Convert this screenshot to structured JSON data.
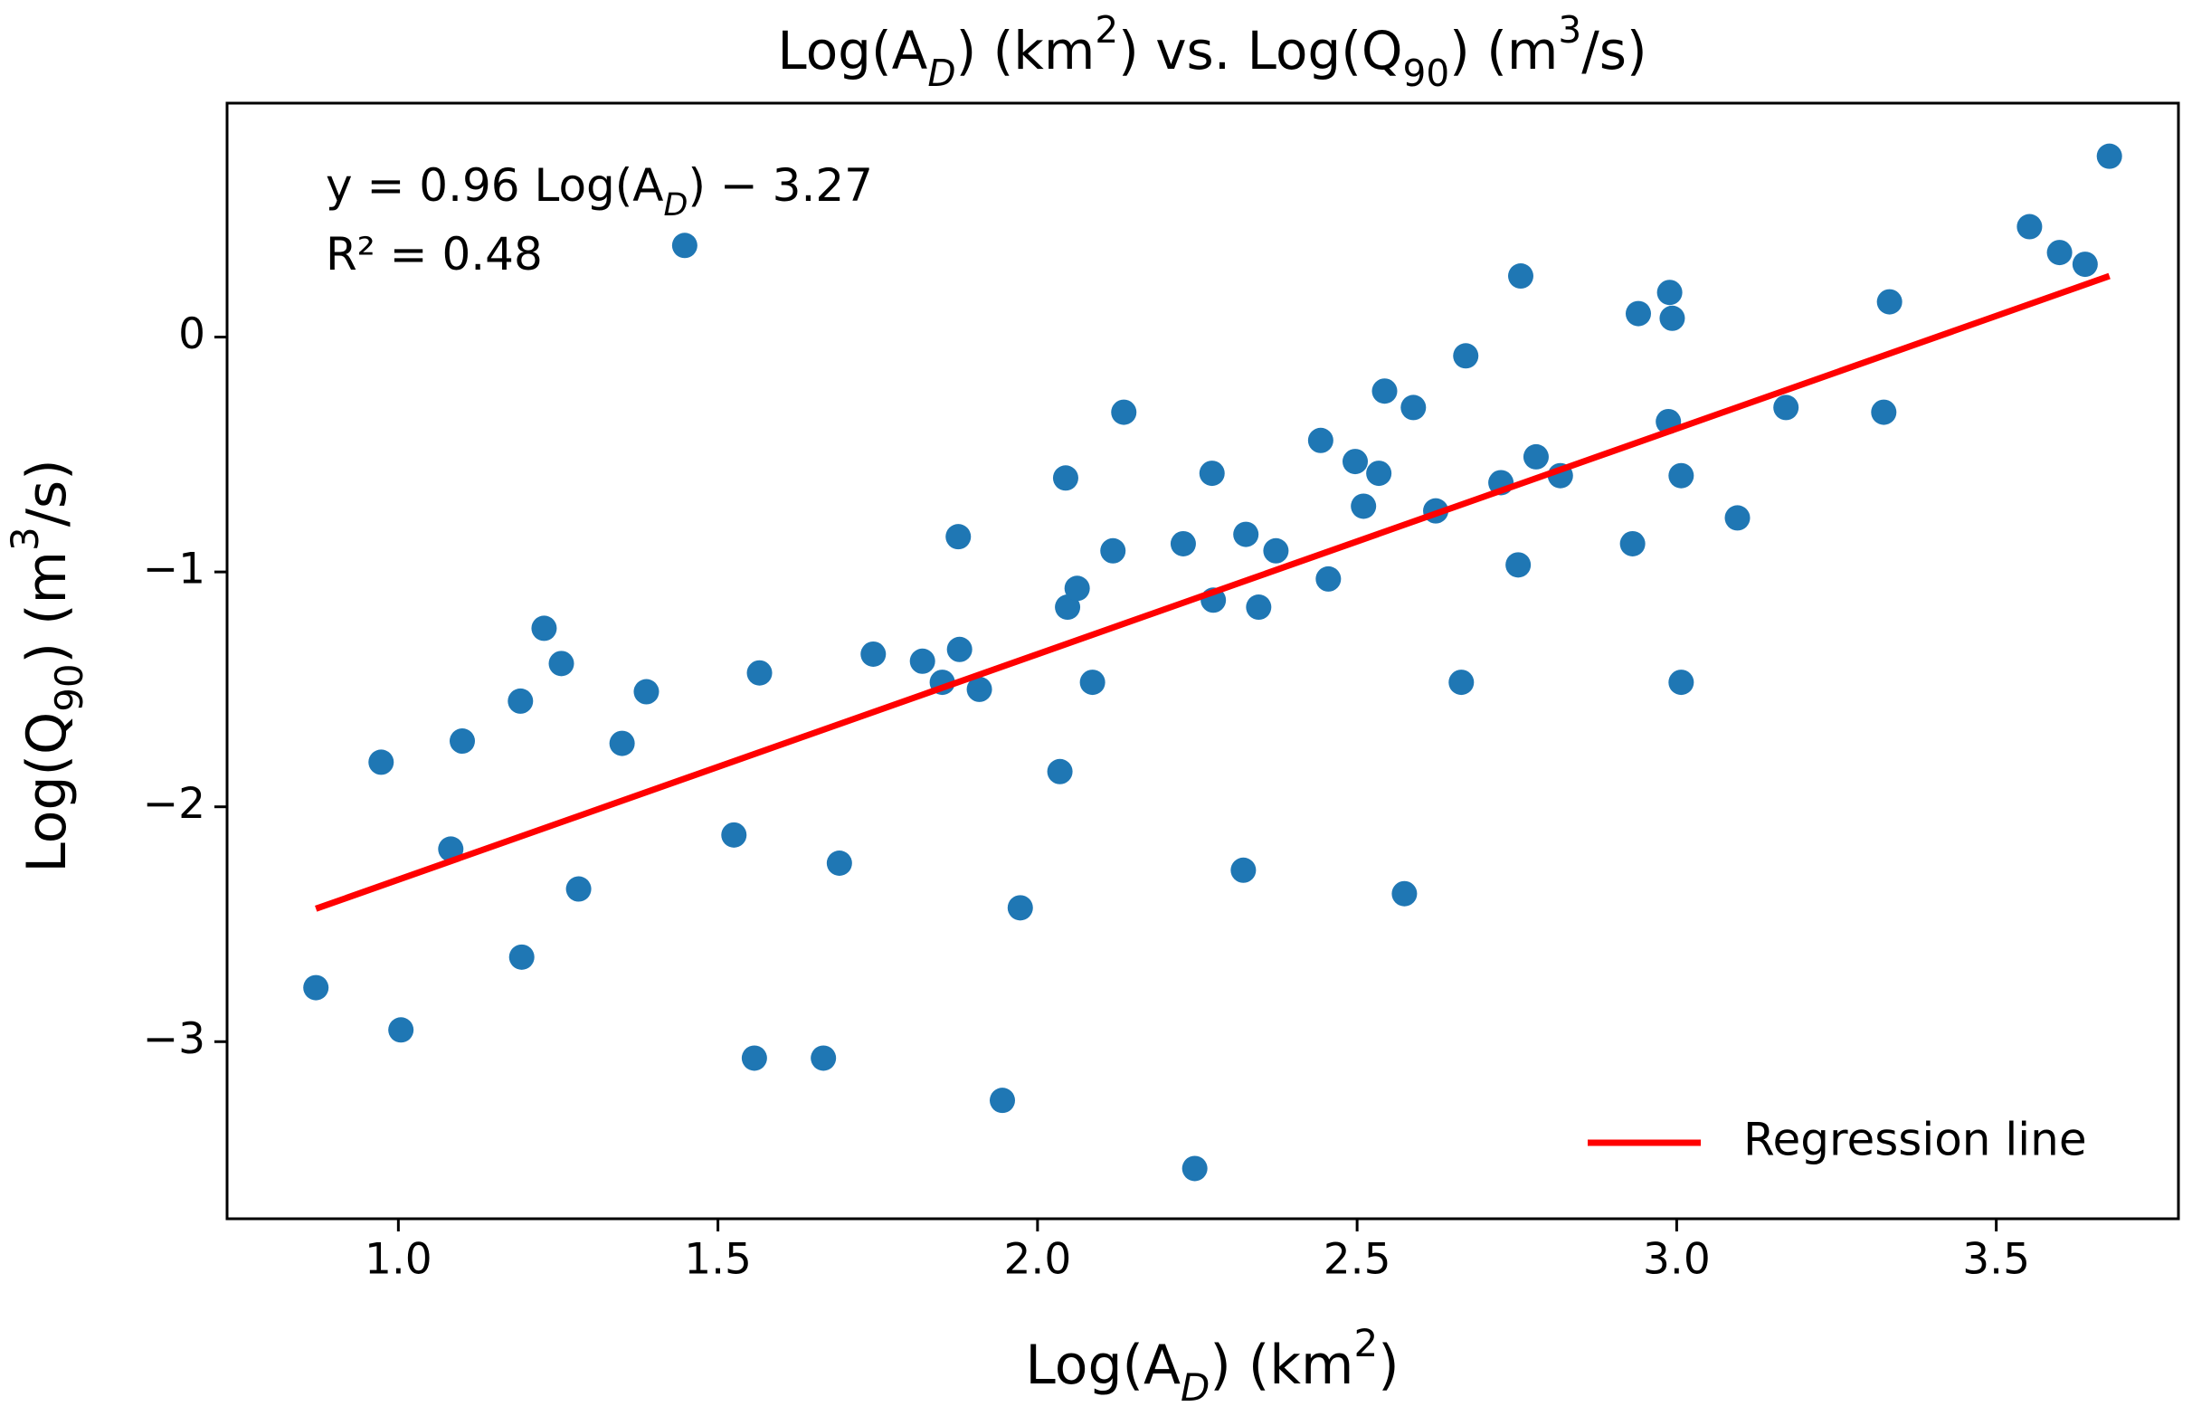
{
  "chart_data": {
    "type": "scatter",
    "title": [
      {
        "text": "Log(A"
      },
      {
        "sub_italic": "D"
      },
      {
        "text": ") (km"
      },
      {
        "sup": "2"
      },
      {
        "text": ") vs. Log(Q"
      },
      {
        "sub": "90"
      },
      {
        "text": ") (m"
      },
      {
        "sup": "3"
      },
      {
        "text": "/s)"
      }
    ],
    "x_label": [
      {
        "text": "Log(A"
      },
      {
        "sub_italic": "D"
      },
      {
        "text": ") (km"
      },
      {
        "sup": "2"
      },
      {
        "text": ")"
      }
    ],
    "y_label": [
      {
        "text": "Log(Q"
      },
      {
        "sub": "90"
      },
      {
        "text": ") (m"
      },
      {
        "sup": "3"
      },
      {
        "text": "/s)"
      }
    ],
    "annotations": [
      [
        {
          "text": "y = 0.96 Log(A"
        },
        {
          "sub_italic": "D"
        },
        {
          "text": ") − 3.27"
        }
      ],
      [
        {
          "text": "R² = 0.48"
        }
      ]
    ],
    "xlim": [
      0.732,
      3.785
    ],
    "ylim": [
      -3.754,
      0.996
    ],
    "xticks": [
      {
        "value": 1,
        "label": "1.0"
      },
      1.5,
      {
        "value": 2,
        "label": "2.0"
      },
      2.5,
      {
        "value": 3,
        "label": "3.0"
      },
      3.5
    ],
    "yticks": [
      {
        "value": -3,
        "label": "−3"
      },
      {
        "value": -2,
        "label": "−2"
      },
      {
        "value": -1,
        "label": "−1"
      },
      0
    ],
    "legend": "lower right",
    "series": [
      {
        "type": "scatter",
        "color": "#1f77b4",
        "x": [
          0.871,
          0.973,
          1.004,
          1.082,
          1.1,
          1.191,
          1.193,
          1.228,
          1.255,
          1.282,
          1.35,
          1.388,
          1.448,
          1.525,
          1.557,
          1.565,
          1.665,
          1.69,
          1.743,
          1.82,
          1.851,
          1.876,
          1.878,
          1.909,
          1.945,
          1.973,
          2.035,
          2.044,
          2.047,
          2.062,
          2.086,
          2.118,
          2.135,
          2.228,
          2.246,
          2.273,
          2.275,
          2.322,
          2.326,
          2.346,
          2.373,
          2.443,
          2.455,
          2.497,
          2.51,
          2.534,
          2.543,
          2.574,
          2.588,
          2.623,
          2.663,
          2.67,
          2.725,
          2.752,
          2.756,
          2.78,
          2.818,
          2.931,
          2.94,
          2.987,
          2.989,
          2.993,
          3.007,
          3.007,
          3.095,
          3.171,
          3.324,
          3.333,
          3.552,
          3.599,
          3.639,
          3.677
        ],
        "values": [
          -2.77,
          -1.81,
          -2.95,
          -2.18,
          -1.72,
          -1.55,
          -2.64,
          -1.24,
          -1.39,
          -2.35,
          -1.73,
          -1.51,
          0.39,
          -2.12,
          -3.07,
          -1.43,
          -3.07,
          -2.24,
          -1.35,
          -1.38,
          -1.47,
          -0.85,
          -1.33,
          -1.5,
          -3.25,
          -2.43,
          -1.85,
          -0.6,
          -1.15,
          -1.07,
          -1.47,
          -0.91,
          -0.32,
          -0.88,
          -3.54,
          -0.58,
          -1.12,
          -2.27,
          -0.84,
          -1.15,
          -0.91,
          -0.44,
          -1.03,
          -0.53,
          -0.72,
          -0.58,
          -0.23,
          -2.37,
          -0.3,
          -0.74,
          -1.47,
          -0.08,
          -0.62,
          -0.97,
          0.26,
          -0.51,
          -0.59,
          -0.88,
          0.1,
          -0.36,
          0.19,
          0.08,
          -0.59,
          -1.47,
          -0.77,
          -0.3,
          -0.32,
          0.15,
          0.47,
          0.36,
          0.31,
          0.77
        ]
      },
      {
        "type": "line",
        "name": "Regression line",
        "color": "#ff0000",
        "x": [
          0.871,
          3.677
        ],
        "values": [
          -2.434,
          0.26
        ]
      }
    ]
  }
}
